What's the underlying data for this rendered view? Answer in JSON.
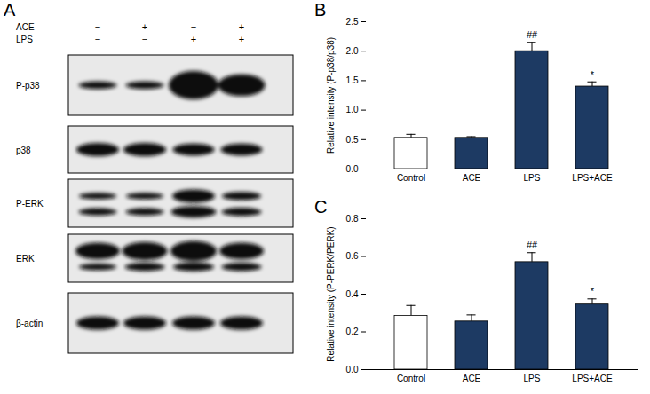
{
  "chart_data": [
    {
      "type": "bar",
      "panel": "B",
      "categories": [
        "Control",
        "ACE",
        "LPS",
        "LPS+ACE"
      ],
      "values": [
        0.53,
        0.53,
        2.0,
        1.4
      ],
      "errors": [
        0.06,
        0.02,
        0.15,
        0.08
      ],
      "annotations": [
        null,
        null,
        "##",
        "*"
      ],
      "colors": [
        "#ffffff",
        "#1d3a63",
        "#1d3a63",
        "#1d3a63"
      ],
      "ylabel": "Relative intensity (P-p38/p38)",
      "ylim": [
        0,
        2.5
      ],
      "yticks": [
        {
          "value": 0,
          "label": "0.0"
        },
        0.5,
        {
          "value": 1,
          "label": "1.0"
        },
        1.5,
        {
          "value": 2,
          "label": "2.0"
        },
        2.5
      ]
    },
    {
      "type": "bar",
      "panel": "C",
      "categories": [
        "Control",
        "ACE",
        "LPS",
        "LPS+ACE"
      ],
      "values": [
        0.285,
        0.255,
        0.57,
        0.345
      ],
      "errors": [
        0.055,
        0.035,
        0.05,
        0.03
      ],
      "annotations": [
        null,
        null,
        "##",
        "*"
      ],
      "colors": [
        "#ffffff",
        "#1d3a63",
        "#1d3a63",
        "#1d3a63"
      ],
      "ylabel": "Relative intensity (P-PERK/PERK)",
      "ylim": [
        0,
        0.8
      ],
      "yticks": [
        {
          "value": 0,
          "label": "0.0"
        },
        0.2,
        0.4,
        0.6,
        0.8
      ]
    }
  ],
  "blot": {
    "panel": "A",
    "treatments": [
      {
        "label": "ACE",
        "signs": [
          "−",
          "+",
          "−",
          "+"
        ]
      },
      {
        "label": "LPS",
        "signs": [
          "−",
          "−",
          "+",
          "+"
        ]
      }
    ],
    "rows": [
      {
        "label": "P-p38",
        "band_intensity": [
          0.35,
          0.35,
          1.0,
          0.85
        ]
      },
      {
        "label": "p38",
        "band_intensity": [
          0.6,
          0.6,
          0.55,
          0.55
        ]
      },
      {
        "label": "P-ERK",
        "band_intensity": [
          0.3,
          0.3,
          0.6,
          0.4
        ],
        "lower_band_intensity": [
          0.35,
          0.35,
          0.75,
          0.45
        ]
      },
      {
        "label": "ERK",
        "band_intensity": [
          0.7,
          0.75,
          0.8,
          0.7
        ],
        "lower_band_intensity": [
          0.3,
          0.45,
          0.5,
          0.45
        ]
      },
      {
        "label": "β-actin",
        "band_intensity": [
          0.6,
          0.6,
          0.6,
          0.6
        ]
      }
    ]
  }
}
